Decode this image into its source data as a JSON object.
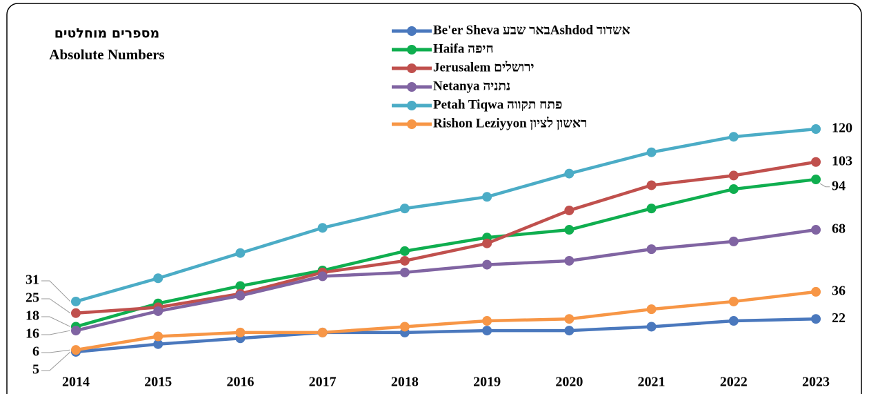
{
  "chart_data": {
    "type": "line",
    "title": "מספרים מוחלטים",
    "subtitle": "Absolute Numbers",
    "categories": [
      "2014",
      "2015",
      "2016",
      "2017",
      "2018",
      "2019",
      "2020",
      "2021",
      "2022",
      "2023"
    ],
    "series": [
      {
        "name": "Be'er Sheva באר שבעAshdod  אשדוד",
        "color": "#4a78bd",
        "values": [
          5,
          9,
          12,
          15,
          15,
          16,
          16,
          18,
          21,
          22
        ]
      },
      {
        "name": "Haifa חיפה",
        "color": "#0fae4f",
        "values": [
          18,
          30,
          39,
          47,
          57,
          64,
          68,
          79,
          89,
          94
        ]
      },
      {
        "name": "Jerusalem ירושלים",
        "color": "#c0504d",
        "values": [
          25,
          28,
          35,
          46,
          52,
          61,
          78,
          91,
          96,
          103
        ]
      },
      {
        "name": "Netanya נתניה",
        "color": "#8064a2",
        "values": [
          16,
          26,
          34,
          44,
          46,
          50,
          52,
          58,
          62,
          68
        ]
      },
      {
        "name": "Petah Tiqwa פתח תקווה",
        "color": "#4bacc6",
        "values": [
          31,
          43,
          56,
          69,
          79,
          85,
          97,
          108,
          116,
          120
        ]
      },
      {
        "name": "Rishon Leziyyon ראשון לציון",
        "color": "#f79646",
        "values": [
          6,
          13,
          15,
          15,
          18,
          21,
          22,
          27,
          31,
          36
        ]
      }
    ]
  }
}
